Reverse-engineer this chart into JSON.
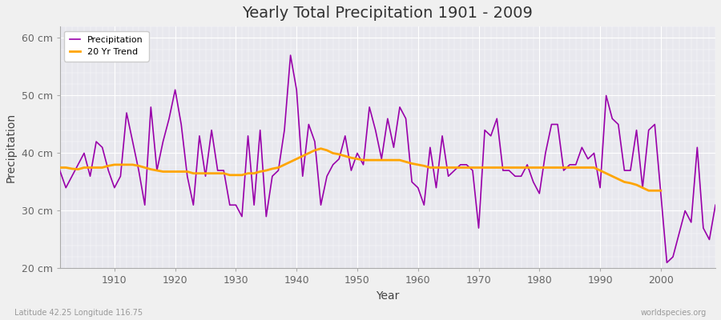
{
  "title": "Yearly Total Precipitation 1901 - 2009",
  "xlabel": "Year",
  "ylabel": "Precipitation",
  "subtitle_left": "Latitude 42.25 Longitude 116.75",
  "subtitle_right": "worldspecies.org",
  "ylim": [
    20,
    62
  ],
  "yticks": [
    20,
    30,
    40,
    50,
    60
  ],
  "ytick_labels": [
    "20 cm",
    "30 cm",
    "40 cm",
    "50 cm",
    "60 cm"
  ],
  "fig_background": "#f0f0f0",
  "plot_background": "#e8e8ee",
  "grid_color": "#ffffff",
  "precip_color": "#9900aa",
  "trend_color": "#ffa500",
  "years": [
    1901,
    1902,
    1903,
    1904,
    1905,
    1906,
    1907,
    1908,
    1909,
    1910,
    1911,
    1912,
    1913,
    1914,
    1915,
    1916,
    1917,
    1918,
    1919,
    1920,
    1921,
    1922,
    1923,
    1924,
    1925,
    1926,
    1927,
    1928,
    1929,
    1930,
    1931,
    1932,
    1933,
    1934,
    1935,
    1936,
    1937,
    1938,
    1939,
    1940,
    1941,
    1942,
    1943,
    1944,
    1945,
    1946,
    1947,
    1948,
    1949,
    1950,
    1951,
    1952,
    1953,
    1954,
    1955,
    1956,
    1957,
    1958,
    1959,
    1960,
    1961,
    1962,
    1963,
    1964,
    1965,
    1966,
    1967,
    1968,
    1969,
    1970,
    1971,
    1972,
    1973,
    1974,
    1975,
    1976,
    1977,
    1978,
    1979,
    1980,
    1981,
    1982,
    1983,
    1984,
    1985,
    1986,
    1987,
    1988,
    1989,
    1990,
    1991,
    1992,
    1993,
    1994,
    1995,
    1996,
    1997,
    1998,
    1999,
    2000,
    2001,
    2002,
    2003,
    2004,
    2005,
    2006,
    2007,
    2008,
    2009
  ],
  "precip": [
    37,
    34,
    36,
    38,
    40,
    36,
    42,
    41,
    37,
    34,
    36,
    47,
    42,
    37,
    31,
    48,
    37,
    42,
    46,
    51,
    45,
    36,
    31,
    43,
    36,
    44,
    37,
    37,
    31,
    31,
    29,
    43,
    31,
    44,
    29,
    36,
    37,
    44,
    57,
    51,
    36,
    45,
    42,
    31,
    36,
    38,
    39,
    43,
    37,
    40,
    38,
    48,
    44,
    39,
    46,
    41,
    48,
    46,
    35,
    34,
    31,
    41,
    34,
    43,
    36,
    37,
    38,
    38,
    37,
    27,
    44,
    43,
    46,
    37,
    37,
    36,
    36,
    38,
    35,
    33,
    40,
    45,
    45,
    37,
    38,
    38,
    41,
    39,
    40,
    34,
    50,
    46,
    45,
    37,
    37,
    44,
    34,
    44,
    45,
    33,
    21,
    22,
    26,
    30,
    28,
    41,
    27,
    25,
    31
  ],
  "trend": [
    37.5,
    37.5,
    37.3,
    37.2,
    37.5,
    37.5,
    37.5,
    37.5,
    37.8,
    38.0,
    38.0,
    38.0,
    38.0,
    37.8,
    37.5,
    37.2,
    37.0,
    36.8,
    36.8,
    36.8,
    36.8,
    36.8,
    36.5,
    36.5,
    36.5,
    36.5,
    36.5,
    36.5,
    36.2,
    36.2,
    36.2,
    36.5,
    36.5,
    36.8,
    37.0,
    37.3,
    37.5,
    38.0,
    38.5,
    39.0,
    39.5,
    40.0,
    40.5,
    40.8,
    40.5,
    40.0,
    39.8,
    39.5,
    39.2,
    39.0,
    38.8,
    38.8,
    38.8,
    38.8,
    38.8,
    38.8,
    38.8,
    38.5,
    38.2,
    38.0,
    37.8,
    37.5,
    37.5,
    37.5,
    37.5,
    37.5,
    37.5,
    37.5,
    37.5,
    37.5,
    37.5,
    37.5,
    37.5,
    37.5,
    37.5,
    37.5,
    37.5,
    37.5,
    37.5,
    37.5,
    37.5,
    37.5,
    37.5,
    37.5,
    37.5,
    37.5,
    37.5,
    37.5,
    37.5,
    37.0,
    36.5,
    36.0,
    35.5,
    35.0,
    34.8,
    34.5,
    34.0,
    33.5,
    33.5,
    33.5
  ]
}
